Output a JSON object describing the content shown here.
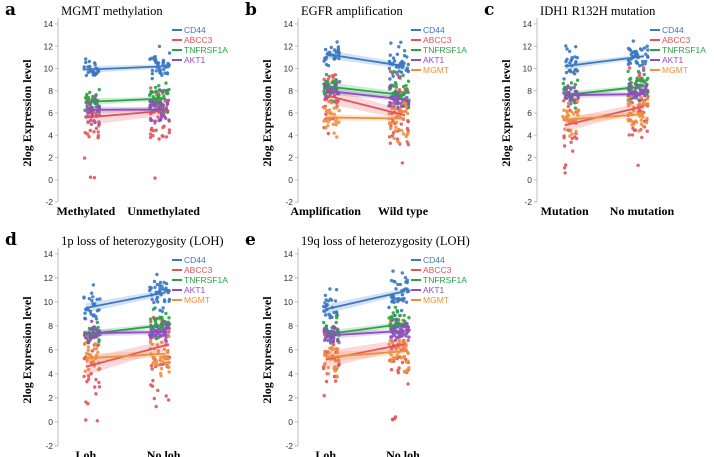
{
  "colors": {
    "CD44": "#3b78c2",
    "ABCC3": "#e2535a",
    "TNFRSF1A": "#2aa346",
    "AKT1": "#8e4fc0",
    "MGMT": "#f0903e"
  },
  "chart_data": [
    {
      "type": "scatter",
      "panel": "a",
      "title": "MGMT methylation",
      "ylabel": "2log Expression level",
      "ylim": [
        -2,
        14
      ],
      "yticks": [
        -2,
        0,
        2,
        4,
        6,
        8,
        10,
        12,
        14
      ],
      "categories": [
        "Methylated",
        "Unmethylated"
      ],
      "legend": [
        "CD44",
        "ABCC3",
        "TNFRSF1A",
        "AKT1"
      ],
      "legend_position": "top-right",
      "series": [
        {
          "name": "CD44",
          "means": [
            9.9,
            10.2
          ],
          "ci": 0.3,
          "spread": [
            9.0,
            11.2,
            9.0,
            12.0
          ]
        },
        {
          "name": "ABCC3",
          "means": [
            5.6,
            6.2
          ],
          "ci": 0.7,
          "spread": [
            0.0,
            7.2,
            0.0,
            9.0
          ]
        },
        {
          "name": "TNFRSF1A",
          "means": [
            7.0,
            7.3
          ],
          "ci": 0.3,
          "spread": [
            5.5,
            8.2,
            6.0,
            9.0
          ]
        },
        {
          "name": "AKT1",
          "means": [
            6.3,
            6.3
          ],
          "ci": 0.3,
          "spread": [
            5.0,
            7.8,
            5.0,
            8.6
          ]
        }
      ]
    },
    {
      "type": "scatter",
      "panel": "b",
      "title": "EGFR amplification",
      "ylabel": "2log Expression level",
      "ylim": [
        -2,
        14
      ],
      "yticks": [
        -2,
        0,
        2,
        4,
        6,
        8,
        10,
        12,
        14
      ],
      "categories": [
        "Amplification",
        "Wild type"
      ],
      "legend": [
        "CD44",
        "ABCC3",
        "TNFRSF1A",
        "AKT1",
        "MGMT"
      ],
      "legend_position": "top-right",
      "series": [
        {
          "name": "CD44",
          "means": [
            11.3,
            10.2
          ],
          "ci": 0.4,
          "spread": [
            9.8,
            12.5,
            9.0,
            12.5
          ]
        },
        {
          "name": "ABCC3",
          "means": [
            7.6,
            5.8
          ],
          "ci": 0.7,
          "spread": [
            2.3,
            9.5,
            0.2,
            10.5
          ]
        },
        {
          "name": "TNFRSF1A",
          "means": [
            8.4,
            7.6
          ],
          "ci": 0.4,
          "spread": [
            7.0,
            9.6,
            6.2,
            9.8
          ]
        },
        {
          "name": "AKT1",
          "means": [
            8.0,
            7.2
          ],
          "ci": 0.3,
          "spread": [
            7.0,
            9.0,
            6.0,
            8.6
          ]
        },
        {
          "name": "MGMT",
          "means": [
            5.6,
            5.5
          ],
          "ci": 0.3,
          "spread": [
            3.8,
            7.2,
            3.2,
            8.4
          ]
        }
      ]
    },
    {
      "type": "scatter",
      "panel": "c",
      "title": "IDH1 R132H mutation",
      "ylabel": "2log Expression level",
      "ylim": [
        -2,
        14
      ],
      "yticks": [
        -2,
        0,
        2,
        4,
        6,
        8,
        10,
        12,
        14
      ],
      "categories": [
        "Mutation",
        "No mutation"
      ],
      "legend": [
        "CD44",
        "ABCC3",
        "TNFRSF1A",
        "AKT1",
        "MGMT"
      ],
      "legend_position": "top-right",
      "series": [
        {
          "name": "CD44",
          "means": [
            10.2,
            11.1
          ],
          "ci": 0.3,
          "spread": [
            9.0,
            12.2,
            9.6,
            12.5
          ]
        },
        {
          "name": "ABCC3",
          "means": [
            4.9,
            6.6
          ],
          "ci": 0.6,
          "spread": [
            0.3,
            9.0,
            0.8,
            10.2
          ]
        },
        {
          "name": "TNFRSF1A",
          "means": [
            7.6,
            8.4
          ],
          "ci": 0.3,
          "spread": [
            6.4,
            9.2,
            7.0,
            9.8
          ]
        },
        {
          "name": "AKT1",
          "means": [
            7.6,
            7.7
          ],
          "ci": 0.3,
          "spread": [
            6.6,
            8.6,
            6.8,
            8.8
          ]
        },
        {
          "name": "MGMT",
          "means": [
            5.4,
            5.9
          ],
          "ci": 0.4,
          "spread": [
            3.6,
            7.2,
            4.0,
            7.6
          ]
        }
      ]
    },
    {
      "type": "scatter",
      "panel": "d",
      "title": "1p loss of heterozygosity (LOH)",
      "ylabel": "2log Expression level",
      "ylim": [
        -2,
        14
      ],
      "yticks": [
        -2,
        0,
        2,
        4,
        6,
        8,
        10,
        12,
        14
      ],
      "categories": [
        "Loh",
        "No loh"
      ],
      "legend": [
        "CD44",
        "ABCC3",
        "TNFRSF1A",
        "AKT1",
        "MGMT"
      ],
      "legend_position": "top-right",
      "series": [
        {
          "name": "CD44",
          "means": [
            9.5,
            10.8
          ],
          "ci": 0.4,
          "spread": [
            8.6,
            12.2,
            9.2,
            12.6
          ]
        },
        {
          "name": "ABCC3",
          "means": [
            4.6,
            6.4
          ],
          "ci": 0.7,
          "spread": [
            -0.2,
            7.6,
            0.2,
            9.0
          ]
        },
        {
          "name": "TNFRSF1A",
          "means": [
            7.3,
            8.1
          ],
          "ci": 0.3,
          "spread": [
            6.4,
            8.8,
            6.8,
            9.4
          ]
        },
        {
          "name": "AKT1",
          "means": [
            7.4,
            7.5
          ],
          "ci": 0.3,
          "spread": [
            6.6,
            8.4,
            6.6,
            8.6
          ]
        },
        {
          "name": "MGMT",
          "means": [
            5.3,
            5.7
          ],
          "ci": 0.4,
          "spread": [
            3.6,
            7.2,
            3.8,
            7.8
          ]
        }
      ]
    },
    {
      "type": "scatter",
      "panel": "e",
      "title": "19q loss of heterozygosity (LOH)",
      "ylabel": "2log Expression level",
      "ylim": [
        -2,
        14
      ],
      "yticks": [
        -2,
        0,
        2,
        4,
        6,
        8,
        10,
        12,
        14
      ],
      "categories": [
        "Loh",
        "No loh"
      ],
      "legend": [
        "CD44",
        "ABCC3",
        "TNFRSF1A",
        "AKT1",
        "MGMT"
      ],
      "legend_position": "top-right",
      "series": [
        {
          "name": "CD44",
          "means": [
            9.4,
            10.9
          ],
          "ci": 0.4,
          "spread": [
            8.6,
            12.2,
            9.2,
            12.6
          ]
        },
        {
          "name": "ABCC3",
          "means": [
            5.2,
            6.5
          ],
          "ci": 0.7,
          "spread": [
            0.0,
            7.8,
            0.0,
            9.2
          ]
        },
        {
          "name": "TNFRSF1A",
          "means": [
            7.3,
            8.2
          ],
          "ci": 0.3,
          "spread": [
            6.4,
            9.0,
            6.8,
            9.6
          ]
        },
        {
          "name": "AKT1",
          "means": [
            7.2,
            7.6
          ],
          "ci": 0.3,
          "spread": [
            6.4,
            8.4,
            6.6,
            8.8
          ]
        },
        {
          "name": "MGMT",
          "means": [
            5.4,
            5.9
          ],
          "ci": 0.4,
          "spread": [
            3.8,
            7.2,
            4.0,
            7.8
          ]
        }
      ]
    }
  ]
}
